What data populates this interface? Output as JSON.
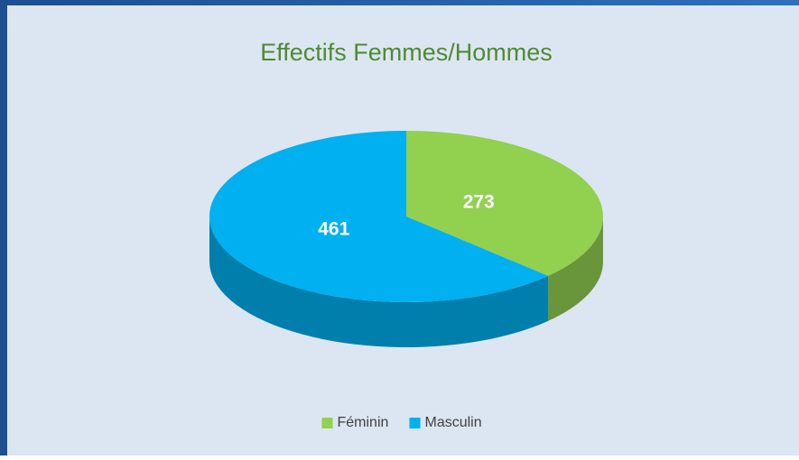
{
  "chart_data": {
    "type": "pie",
    "title": "Effectifs Femmes/Hommes",
    "categories": [
      "Féminin",
      "Masculin"
    ],
    "values": [
      273,
      461
    ],
    "colors": [
      "#92d050",
      "#00b0f0"
    ],
    "legend": "bottom"
  }
}
